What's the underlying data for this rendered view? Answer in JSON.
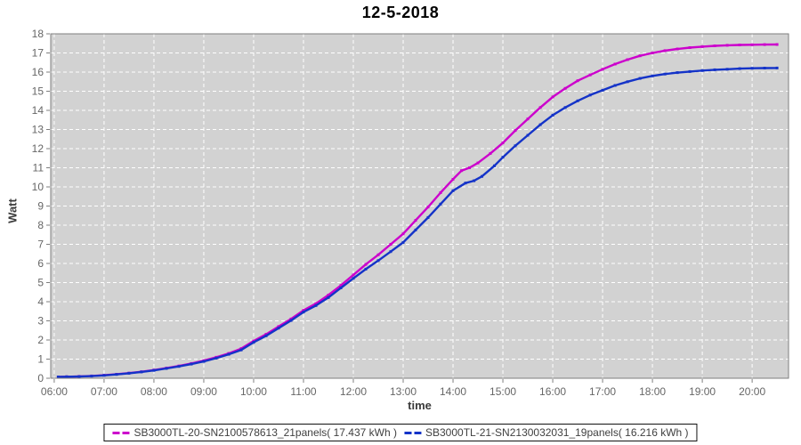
{
  "title": "12-5-2018",
  "chart_data": {
    "type": "line",
    "title": "12-5-2018",
    "xlabel": "time",
    "ylabel": "Watt",
    "x_tick_labels": [
      "06:00",
      "07:00",
      "08:00",
      "09:00",
      "10:00",
      "11:00",
      "12:00",
      "13:00",
      "14:00",
      "15:00",
      "16:00",
      "17:00",
      "18:00",
      "19:00",
      "20:00"
    ],
    "x_tick_hours": [
      6,
      7,
      8,
      9,
      10,
      11,
      12,
      13,
      14,
      15,
      16,
      17,
      18,
      19,
      20
    ],
    "xlim_hours": [
      5.93,
      20.73
    ],
    "ylim": [
      0,
      18
    ],
    "y_tick_step": 1,
    "grid": true,
    "legend_position": "bottom",
    "colors": {
      "plot_bg": "#d2d2d2",
      "grid": "#ffffff",
      "border": "#7f7f7f",
      "tick_label": "#666666",
      "axis_label": "#3a3a3a"
    },
    "series": [
      {
        "name": "SB3000TL-20-SN2100578613_21panels",
        "kwh": "17.437",
        "legend_label": "SB3000TL-20-SN2100578613_21panels( 17.437 kWh )",
        "color": "#cc00cc",
        "points": [
          [
            6.08,
            0.07
          ],
          [
            6.25,
            0.08
          ],
          [
            6.5,
            0.1
          ],
          [
            6.75,
            0.12
          ],
          [
            7.0,
            0.16
          ],
          [
            7.25,
            0.21
          ],
          [
            7.5,
            0.27
          ],
          [
            7.75,
            0.34
          ],
          [
            8.0,
            0.43
          ],
          [
            8.25,
            0.53
          ],
          [
            8.5,
            0.64
          ],
          [
            8.75,
            0.77
          ],
          [
            9.0,
            0.92
          ],
          [
            9.25,
            1.1
          ],
          [
            9.5,
            1.3
          ],
          [
            9.75,
            1.55
          ],
          [
            10.0,
            1.95
          ],
          [
            10.25,
            2.3
          ],
          [
            10.5,
            2.7
          ],
          [
            10.75,
            3.1
          ],
          [
            11.0,
            3.55
          ],
          [
            11.25,
            3.9
          ],
          [
            11.5,
            4.35
          ],
          [
            11.75,
            4.85
          ],
          [
            12.0,
            5.4
          ],
          [
            12.25,
            5.95
          ],
          [
            12.5,
            6.45
          ],
          [
            12.75,
            7.0
          ],
          [
            13.0,
            7.55
          ],
          [
            13.25,
            8.25
          ],
          [
            13.5,
            8.95
          ],
          [
            13.75,
            9.7
          ],
          [
            14.0,
            10.4
          ],
          [
            14.17,
            10.85
          ],
          [
            14.33,
            11.0
          ],
          [
            14.5,
            11.25
          ],
          [
            14.75,
            11.75
          ],
          [
            15.0,
            12.3
          ],
          [
            15.25,
            12.95
          ],
          [
            15.5,
            13.55
          ],
          [
            15.75,
            14.15
          ],
          [
            16.0,
            14.7
          ],
          [
            16.25,
            15.15
          ],
          [
            16.5,
            15.55
          ],
          [
            16.75,
            15.85
          ],
          [
            17.0,
            16.15
          ],
          [
            17.25,
            16.42
          ],
          [
            17.5,
            16.65
          ],
          [
            17.75,
            16.85
          ],
          [
            18.0,
            17.0
          ],
          [
            18.25,
            17.12
          ],
          [
            18.5,
            17.21
          ],
          [
            18.75,
            17.28
          ],
          [
            19.0,
            17.33
          ],
          [
            19.25,
            17.37
          ],
          [
            19.5,
            17.4
          ],
          [
            19.75,
            17.42
          ],
          [
            20.0,
            17.43
          ],
          [
            20.25,
            17.435
          ],
          [
            20.5,
            17.44
          ]
        ]
      },
      {
        "name": "SB3000TL-21-SN2130032031_19panels",
        "kwh": "16.216",
        "legend_label": "SB3000TL-21-SN2130032031_19panels( 16.216 kWh )",
        "color": "#1433c8",
        "points": [
          [
            6.08,
            0.07
          ],
          [
            6.25,
            0.08
          ],
          [
            6.5,
            0.09
          ],
          [
            6.75,
            0.11
          ],
          [
            7.0,
            0.15
          ],
          [
            7.25,
            0.2
          ],
          [
            7.5,
            0.26
          ],
          [
            7.75,
            0.33
          ],
          [
            8.0,
            0.41
          ],
          [
            8.25,
            0.51
          ],
          [
            8.5,
            0.62
          ],
          [
            8.75,
            0.74
          ],
          [
            9.0,
            0.88
          ],
          [
            9.25,
            1.05
          ],
          [
            9.5,
            1.25
          ],
          [
            9.75,
            1.48
          ],
          [
            10.0,
            1.88
          ],
          [
            10.25,
            2.22
          ],
          [
            10.5,
            2.62
          ],
          [
            10.75,
            3.02
          ],
          [
            11.0,
            3.46
          ],
          [
            11.25,
            3.8
          ],
          [
            11.5,
            4.22
          ],
          [
            11.75,
            4.72
          ],
          [
            12.0,
            5.22
          ],
          [
            12.25,
            5.7
          ],
          [
            12.5,
            6.15
          ],
          [
            12.75,
            6.62
          ],
          [
            13.0,
            7.1
          ],
          [
            13.25,
            7.75
          ],
          [
            13.5,
            8.4
          ],
          [
            13.75,
            9.1
          ],
          [
            14.0,
            9.8
          ],
          [
            14.25,
            10.2
          ],
          [
            14.42,
            10.32
          ],
          [
            14.58,
            10.55
          ],
          [
            14.83,
            11.1
          ],
          [
            15.0,
            11.55
          ],
          [
            15.25,
            12.15
          ],
          [
            15.5,
            12.7
          ],
          [
            15.75,
            13.25
          ],
          [
            16.0,
            13.75
          ],
          [
            16.25,
            14.15
          ],
          [
            16.5,
            14.5
          ],
          [
            16.75,
            14.8
          ],
          [
            17.0,
            15.05
          ],
          [
            17.25,
            15.3
          ],
          [
            17.5,
            15.5
          ],
          [
            17.75,
            15.67
          ],
          [
            18.0,
            15.8
          ],
          [
            18.25,
            15.9
          ],
          [
            18.5,
            15.97
          ],
          [
            18.75,
            16.03
          ],
          [
            19.0,
            16.08
          ],
          [
            19.25,
            16.12
          ],
          [
            19.5,
            16.15
          ],
          [
            19.75,
            16.18
          ],
          [
            20.0,
            16.2
          ],
          [
            20.25,
            16.21
          ],
          [
            20.5,
            16.216
          ]
        ]
      }
    ]
  }
}
